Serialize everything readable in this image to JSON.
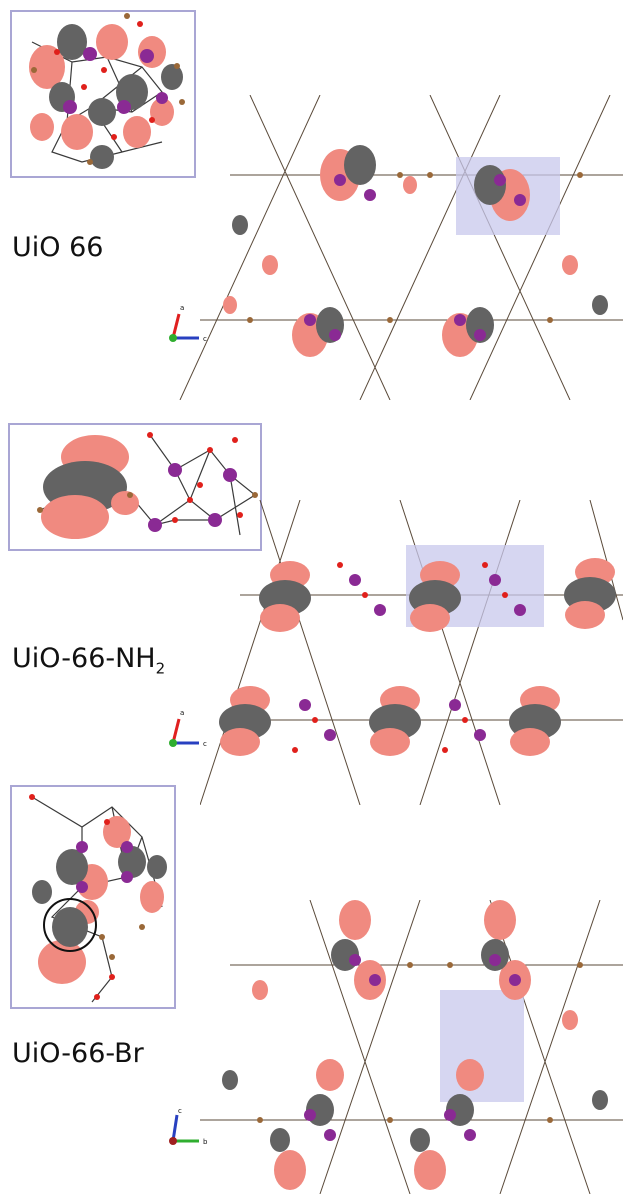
{
  "panels": [
    {
      "label": "UiO 66",
      "axes": {
        "vertical": "a",
        "horizontal": "c"
      }
    },
    {
      "label": "UiO-66-NH",
      "label_sub": "2",
      "axes": {
        "vertical": "a",
        "horizontal": "c"
      }
    },
    {
      "label": "UiO-66-Br",
      "axes": {
        "vertical": "c",
        "horizontal": "b"
      }
    }
  ],
  "colors": {
    "orbital_pos": "#f08a80",
    "orbital_neg": "#636363",
    "metal": "#8a2a94",
    "oxygen": "#e0201b",
    "carbon": "#9a6838",
    "hydrogen": "#f3d4d4",
    "bond": "#3a3a3a",
    "highlight": "#c8c8ec",
    "inset_border": "#a9a6d4",
    "axis_a": "#e02020",
    "axis_b": "#2fae2f",
    "axis_c": "#2840c0"
  }
}
